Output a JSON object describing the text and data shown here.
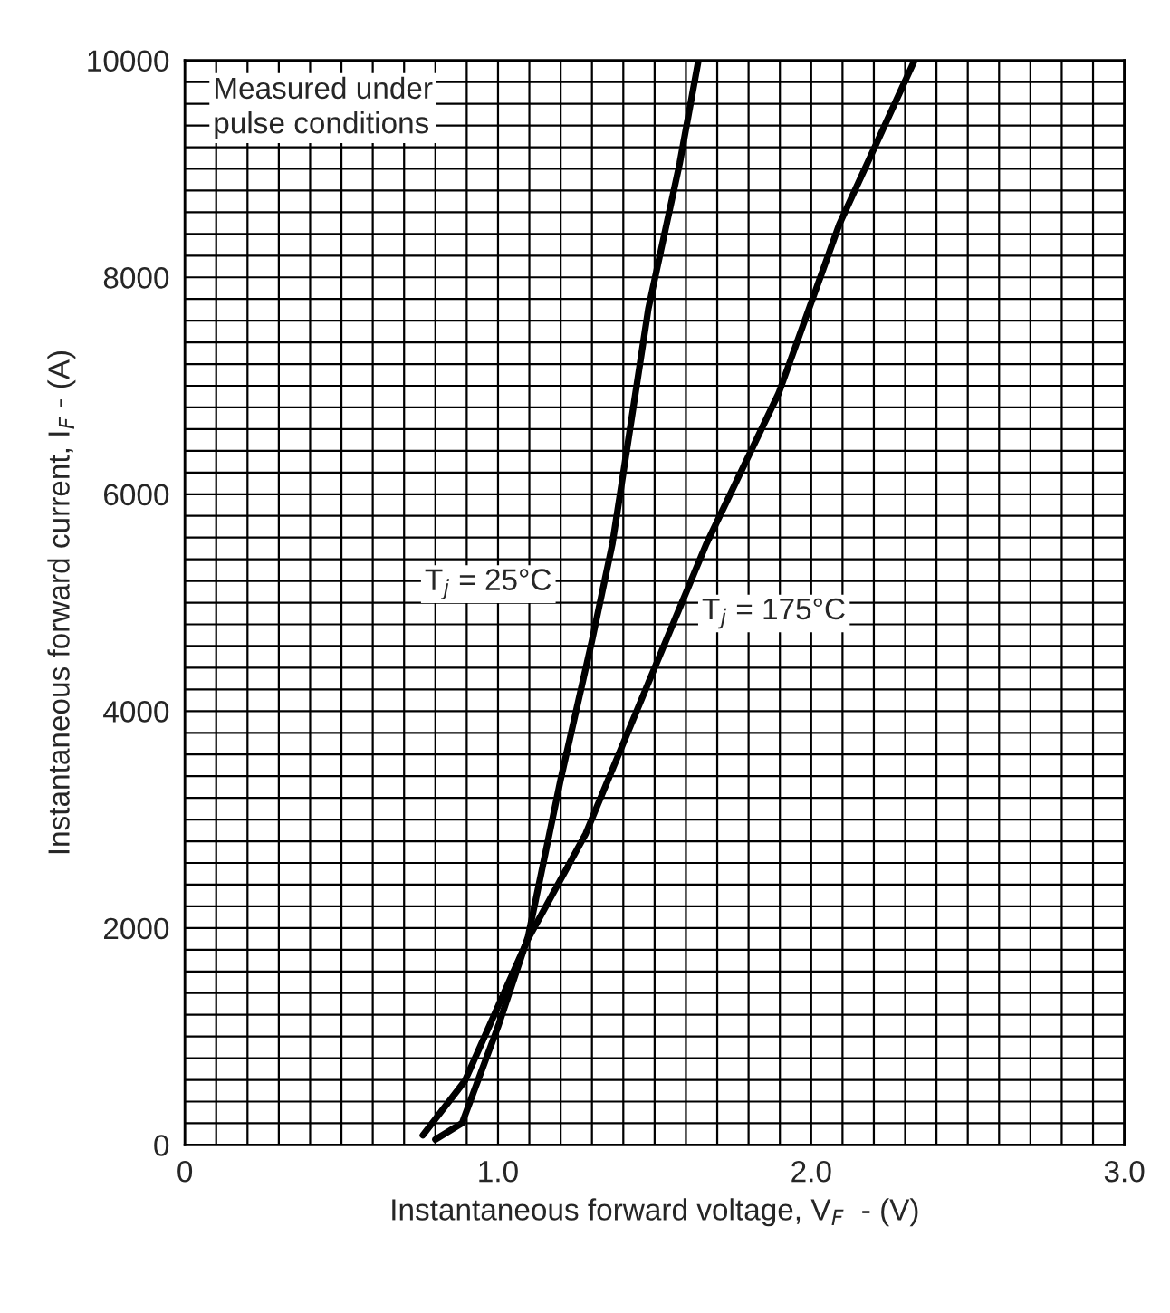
{
  "chart_data": {
    "type": "line",
    "xlabel": "Instantaneous forward voltage, V$_{F}$  - (V)",
    "ylabel": "Instantaneous forward current, I$_{F}$ - (A)",
    "series": [
      {
        "color": "#000000",
        "x": [
          0.8,
          0.885,
          1.0,
          1.096,
          1.2,
          1.3,
          1.365,
          1.395,
          1.48,
          1.58,
          1.64
        ],
        "values": [
          50,
          200,
          1090,
          1920,
          3370,
          4650,
          5540,
          6100,
          7710,
          9050,
          10000
        ]
      },
      {
        "color": "#000000",
        "x": [
          0.76,
          0.894,
          1.096,
          1.28,
          1.48,
          1.665,
          1.896,
          2.09,
          2.33
        ],
        "values": [
          90,
          590,
          1900,
          2870,
          4260,
          5540,
          6930,
          8490,
          10000
        ]
      }
    ],
    "annotations": [
      "T$_{j}$ = 25°C",
      "T$_{j}$ = 175°C",
      "Measured under\npulse conditions"
    ],
    "xlim": [
      0,
      3.0
    ],
    "ylim": [
      0,
      10000
    ],
    "xticks": [
      {
        "value": 0,
        "label": "0"
      },
      {
        "value": 0.1,
        "label": null
      },
      {
        "value": 0.2,
        "label": null
      },
      {
        "value": 0.3,
        "label": null
      },
      {
        "value": 0.4,
        "label": null
      },
      {
        "value": 0.5,
        "label": null
      },
      {
        "value": 0.6,
        "label": null
      },
      {
        "value": 0.7,
        "label": null
      },
      {
        "value": 0.8,
        "label": null
      },
      {
        "value": 0.9,
        "label": null
      },
      {
        "value": 1.0,
        "label": "1.0"
      },
      {
        "value": 1.1,
        "label": null
      },
      {
        "value": 1.2,
        "label": null
      },
      {
        "value": 1.3,
        "label": null
      },
      {
        "value": 1.4,
        "label": null
      },
      {
        "value": 1.5,
        "label": null
      },
      {
        "value": 1.6,
        "label": null
      },
      {
        "value": 1.7,
        "label": null
      },
      {
        "value": 1.8,
        "label": null
      },
      {
        "value": 1.9,
        "label": null
      },
      {
        "value": 2.0,
        "label": "2.0"
      },
      {
        "value": 2.1,
        "label": null
      },
      {
        "value": 2.2,
        "label": null
      },
      {
        "value": 2.3,
        "label": null
      },
      {
        "value": 2.4,
        "label": null
      },
      {
        "value": 2.5,
        "label": null
      },
      {
        "value": 2.6,
        "label": null
      },
      {
        "value": 2.7,
        "label": null
      },
      {
        "value": 2.8,
        "label": null
      },
      {
        "value": 2.9,
        "label": null
      },
      {
        "value": 3.0,
        "label": "3.0"
      }
    ],
    "yticks": [
      0,
      {
        "value": 200,
        "label": null
      },
      {
        "value": 400,
        "label": null
      },
      {
        "value": 600,
        "label": null
      },
      {
        "value": 800,
        "label": null
      },
      {
        "value": 1000,
        "label": null
      },
      {
        "value": 1200,
        "label": null
      },
      {
        "value": 1400,
        "label": null
      },
      {
        "value": 1600,
        "label": null
      },
      {
        "value": 1800,
        "label": null
      },
      2000,
      {
        "value": 2200,
        "label": null
      },
      {
        "value": 2400,
        "label": null
      },
      {
        "value": 2600,
        "label": null
      },
      {
        "value": 2800,
        "label": null
      },
      {
        "value": 3000,
        "label": null
      },
      {
        "value": 3200,
        "label": null
      },
      {
        "value": 3400,
        "label": null
      },
      {
        "value": 3600,
        "label": null
      },
      {
        "value": 3800,
        "label": null
      },
      4000,
      {
        "value": 4200,
        "label": null
      },
      {
        "value": 4400,
        "label": null
      },
      {
        "value": 4600,
        "label": null
      },
      {
        "value": 4800,
        "label": null
      },
      {
        "value": 5000,
        "label": null
      },
      {
        "value": 5200,
        "label": null
      },
      {
        "value": 5400,
        "label": null
      },
      {
        "value": 5600,
        "label": null
      },
      {
        "value": 5800,
        "label": null
      },
      6000,
      {
        "value": 6200,
        "label": null
      },
      {
        "value": 6400,
        "label": null
      },
      {
        "value": 6600,
        "label": null
      },
      {
        "value": 6800,
        "label": null
      },
      {
        "value": 7000,
        "label": null
      },
      {
        "value": 7200,
        "label": null
      },
      {
        "value": 7400,
        "label": null
      },
      {
        "value": 7600,
        "label": null
      },
      {
        "value": 7800,
        "label": null
      },
      8000,
      {
        "value": 8200,
        "label": null
      },
      {
        "value": 8400,
        "label": null
      },
      {
        "value": 8600,
        "label": null
      },
      {
        "value": 8800,
        "label": null
      },
      {
        "value": 9000,
        "label": null
      },
      {
        "value": 9200,
        "label": null
      },
      {
        "value": 9400,
        "label": null
      },
      {
        "value": 9600,
        "label": null
      },
      {
        "value": 9800,
        "label": null
      },
      10000
    ],
    "grid": true,
    "marker": "none",
    "line_style": "solid",
    "legend": false
  }
}
